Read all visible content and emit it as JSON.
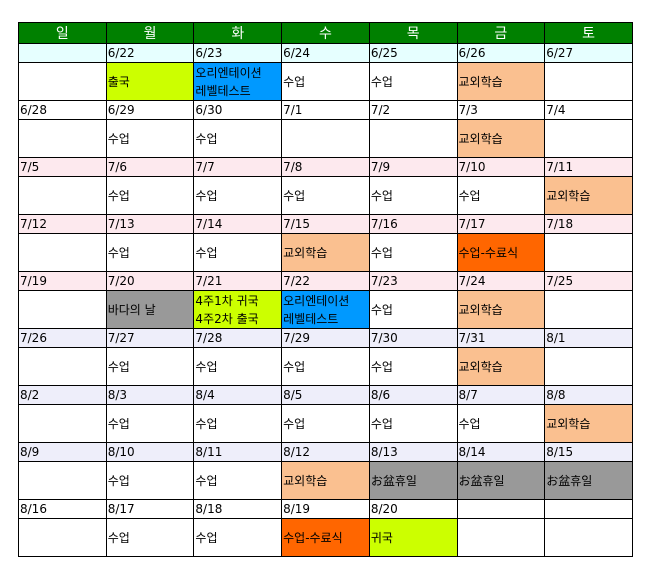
{
  "header": {
    "days": [
      "일",
      "월",
      "화",
      "수",
      "목",
      "금",
      "토"
    ]
  },
  "weeks": [
    {
      "color": "#e6ffff",
      "dates": [
        "6/22",
        "6/23",
        "6/24",
        "6/25",
        "6/26",
        "6/27"
      ],
      "first_date": null,
      "events": [
        null,
        {
          "lines": [
            "출국"
          ],
          "color": "#ccff00"
        },
        {
          "lines": [
            "오리엔테이션",
            "레벨테스트"
          ],
          "color": "#0099ff"
        },
        {
          "lines": [
            "수업"
          ],
          "color": null
        },
        {
          "lines": [
            "수업"
          ],
          "color": null
        },
        {
          "lines": [
            "교외학습"
          ],
          "color": "#fac090"
        },
        null
      ]
    },
    {
      "color": "#ffffff",
      "dates": [
        "6/28",
        "6/29",
        "6/30",
        "7/1",
        "7/2",
        "7/3",
        "7/4"
      ],
      "events": [
        null,
        {
          "lines": [
            "수업"
          ],
          "color": null
        },
        {
          "lines": [
            "수업"
          ],
          "color": null
        },
        null,
        null,
        {
          "lines": [
            "교외학습"
          ],
          "color": "#fac090"
        },
        null
      ]
    },
    {
      "color": "#fde9ee",
      "dates": [
        "7/5",
        "7/6",
        "7/7",
        "7/8",
        "7/9",
        "7/10",
        "7/11"
      ],
      "events": [
        null,
        {
          "lines": [
            "수업"
          ],
          "color": null
        },
        {
          "lines": [
            "수업"
          ],
          "color": null
        },
        {
          "lines": [
            "수업"
          ],
          "color": null
        },
        {
          "lines": [
            "수업"
          ],
          "color": null
        },
        {
          "lines": [
            "수업"
          ],
          "color": null
        },
        {
          "lines": [
            "교외학습"
          ],
          "color": "#fac090"
        }
      ]
    },
    {
      "color": "#fde9ee",
      "dates": [
        "7/12",
        "7/13",
        "7/14",
        "7/15",
        "7/16",
        "7/17",
        "7/18"
      ],
      "events": [
        null,
        {
          "lines": [
            "수업"
          ],
          "color": null
        },
        {
          "lines": [
            "수업"
          ],
          "color": null
        },
        {
          "lines": [
            "교외학습"
          ],
          "color": "#fac090"
        },
        {
          "lines": [
            "수업"
          ],
          "color": null
        },
        {
          "lines": [
            "수업-수료식"
          ],
          "color": "#ff6600"
        },
        null
      ]
    },
    {
      "color": "#fde9ee",
      "dates": [
        "7/19",
        "7/20",
        "7/21",
        "7/22",
        "7/23",
        "7/24",
        "7/25"
      ],
      "events": [
        null,
        {
          "lines": [
            "바다의 날"
          ],
          "color": "#999999"
        },
        {
          "lines": [
            "4주1차 귀국",
            "4주2차 출국"
          ],
          "color": "#ccff00"
        },
        {
          "lines": [
            "오리엔테이션",
            "레벨테스트"
          ],
          "color": "#0099ff"
        },
        {
          "lines": [
            "수업"
          ],
          "color": null
        },
        {
          "lines": [
            "교외학습"
          ],
          "color": "#fac090"
        },
        null
      ]
    },
    {
      "color": "#eeeefa",
      "dates": [
        "7/26",
        "7/27",
        "7/28",
        "7/29",
        "7/30",
        "7/31",
        "8/1"
      ],
      "events": [
        null,
        {
          "lines": [
            "수업"
          ],
          "color": null
        },
        {
          "lines": [
            "수업"
          ],
          "color": null
        },
        {
          "lines": [
            "수업"
          ],
          "color": null
        },
        {
          "lines": [
            "수업"
          ],
          "color": null
        },
        {
          "lines": [
            "교외학습"
          ],
          "color": "#fac090"
        },
        null
      ]
    },
    {
      "color": "#eeeefa",
      "dates": [
        "8/2",
        "8/3",
        "8/4",
        "8/5",
        "8/6",
        "8/7",
        "8/8"
      ],
      "events": [
        null,
        {
          "lines": [
            "수업"
          ],
          "color": null
        },
        {
          "lines": [
            "수업"
          ],
          "color": null
        },
        {
          "lines": [
            "수업"
          ],
          "color": null
        },
        {
          "lines": [
            "수업"
          ],
          "color": null
        },
        {
          "lines": [
            "수업"
          ],
          "color": null
        },
        {
          "lines": [
            "교외학습"
          ],
          "color": "#fac090"
        }
      ]
    },
    {
      "color": "#eeeefa",
      "dates": [
        "8/9",
        "8/10",
        "8/11",
        "8/12",
        "8/13",
        "8/14",
        "8/15"
      ],
      "events": [
        null,
        {
          "lines": [
            "수업"
          ],
          "color": null
        },
        {
          "lines": [
            "수업"
          ],
          "color": null
        },
        {
          "lines": [
            "교외학습"
          ],
          "color": "#fac090"
        },
        {
          "lines": [
            "お盆휴일"
          ],
          "color": "#999999"
        },
        {
          "lines": [
            "お盆휴일"
          ],
          "color": "#999999"
        },
        {
          "lines": [
            "お盆휴일"
          ],
          "color": "#999999"
        }
      ]
    },
    {
      "color": "#ffffff",
      "dates": [
        "8/16",
        "8/17",
        "8/18",
        "8/19",
        "8/20",
        null,
        null
      ],
      "events": [
        null,
        {
          "lines": [
            "수업"
          ],
          "color": null
        },
        {
          "lines": [
            "수업"
          ],
          "color": null
        },
        {
          "lines": [
            "수업-수료식"
          ],
          "color": "#ff6600"
        },
        {
          "lines": [
            "귀국"
          ],
          "color": "#ccff00"
        },
        null,
        null
      ]
    }
  ]
}
